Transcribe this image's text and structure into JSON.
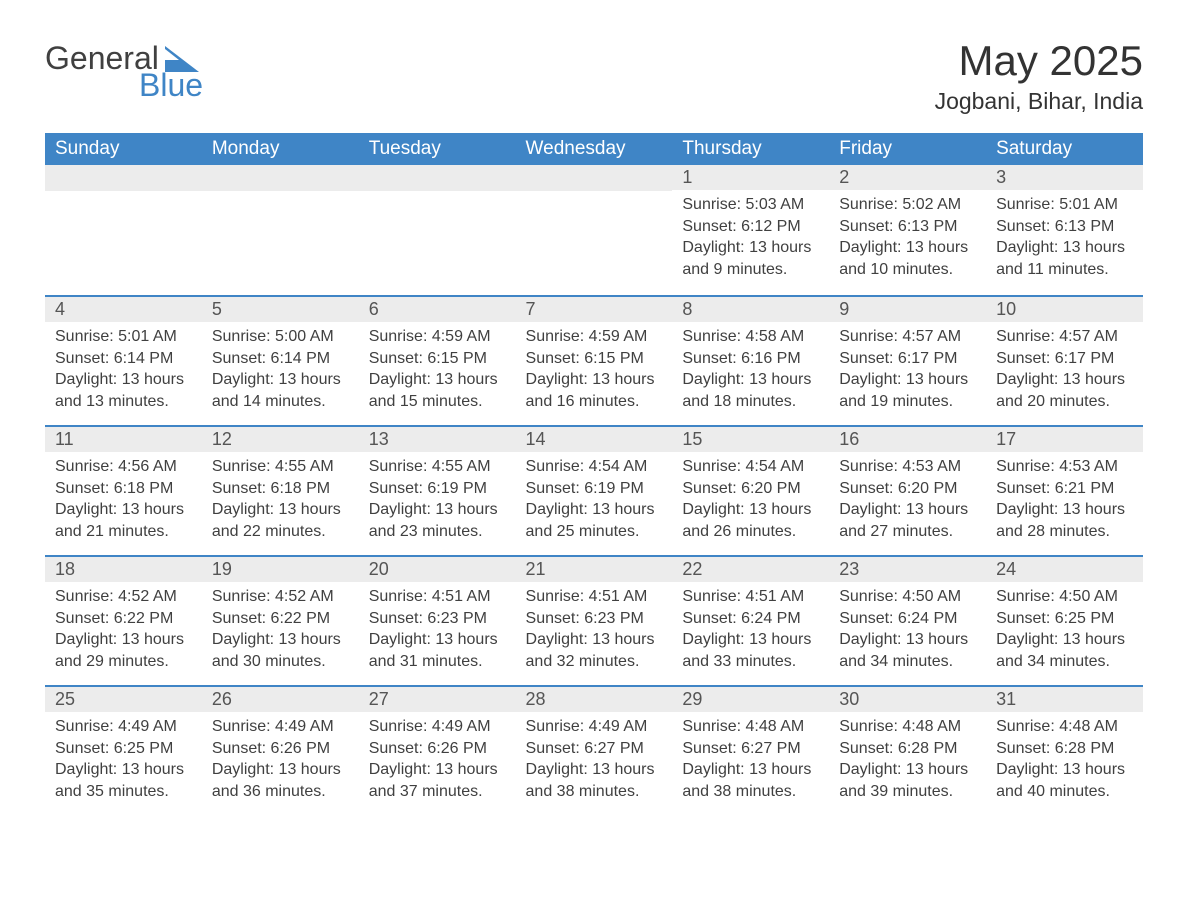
{
  "logo": {
    "text_general": "General",
    "text_blue": "Blue",
    "triangle_color": "#3f85c6"
  },
  "header": {
    "month_title": "May 2025",
    "location": "Jogbani, Bihar, India"
  },
  "styles": {
    "header_bg": "#3f85c6",
    "header_text": "#ffffff",
    "daybar_bg": "#ececec",
    "daybar_border": "#3f85c6",
    "body_text": "#404040",
    "page_bg": "#ffffff",
    "title_fontsize": 42,
    "location_fontsize": 23,
    "dayheader_fontsize": 19,
    "daynum_fontsize": 18,
    "cell_fontsize": 16
  },
  "day_headers": [
    "Sunday",
    "Monday",
    "Tuesday",
    "Wednesday",
    "Thursday",
    "Friday",
    "Saturday"
  ],
  "weeks": [
    [
      null,
      null,
      null,
      null,
      {
        "num": "1",
        "sunrise": "Sunrise: 5:03 AM",
        "sunset": "Sunset: 6:12 PM",
        "daylight": "Daylight: 13 hours and 9 minutes."
      },
      {
        "num": "2",
        "sunrise": "Sunrise: 5:02 AM",
        "sunset": "Sunset: 6:13 PM",
        "daylight": "Daylight: 13 hours and 10 minutes."
      },
      {
        "num": "3",
        "sunrise": "Sunrise: 5:01 AM",
        "sunset": "Sunset: 6:13 PM",
        "daylight": "Daylight: 13 hours and 11 minutes."
      }
    ],
    [
      {
        "num": "4",
        "sunrise": "Sunrise: 5:01 AM",
        "sunset": "Sunset: 6:14 PM",
        "daylight": "Daylight: 13 hours and 13 minutes."
      },
      {
        "num": "5",
        "sunrise": "Sunrise: 5:00 AM",
        "sunset": "Sunset: 6:14 PM",
        "daylight": "Daylight: 13 hours and 14 minutes."
      },
      {
        "num": "6",
        "sunrise": "Sunrise: 4:59 AM",
        "sunset": "Sunset: 6:15 PM",
        "daylight": "Daylight: 13 hours and 15 minutes."
      },
      {
        "num": "7",
        "sunrise": "Sunrise: 4:59 AM",
        "sunset": "Sunset: 6:15 PM",
        "daylight": "Daylight: 13 hours and 16 minutes."
      },
      {
        "num": "8",
        "sunrise": "Sunrise: 4:58 AM",
        "sunset": "Sunset: 6:16 PM",
        "daylight": "Daylight: 13 hours and 18 minutes."
      },
      {
        "num": "9",
        "sunrise": "Sunrise: 4:57 AM",
        "sunset": "Sunset: 6:17 PM",
        "daylight": "Daylight: 13 hours and 19 minutes."
      },
      {
        "num": "10",
        "sunrise": "Sunrise: 4:57 AM",
        "sunset": "Sunset: 6:17 PM",
        "daylight": "Daylight: 13 hours and 20 minutes."
      }
    ],
    [
      {
        "num": "11",
        "sunrise": "Sunrise: 4:56 AM",
        "sunset": "Sunset: 6:18 PM",
        "daylight": "Daylight: 13 hours and 21 minutes."
      },
      {
        "num": "12",
        "sunrise": "Sunrise: 4:55 AM",
        "sunset": "Sunset: 6:18 PM",
        "daylight": "Daylight: 13 hours and 22 minutes."
      },
      {
        "num": "13",
        "sunrise": "Sunrise: 4:55 AM",
        "sunset": "Sunset: 6:19 PM",
        "daylight": "Daylight: 13 hours and 23 minutes."
      },
      {
        "num": "14",
        "sunrise": "Sunrise: 4:54 AM",
        "sunset": "Sunset: 6:19 PM",
        "daylight": "Daylight: 13 hours and 25 minutes."
      },
      {
        "num": "15",
        "sunrise": "Sunrise: 4:54 AM",
        "sunset": "Sunset: 6:20 PM",
        "daylight": "Daylight: 13 hours and 26 minutes."
      },
      {
        "num": "16",
        "sunrise": "Sunrise: 4:53 AM",
        "sunset": "Sunset: 6:20 PM",
        "daylight": "Daylight: 13 hours and 27 minutes."
      },
      {
        "num": "17",
        "sunrise": "Sunrise: 4:53 AM",
        "sunset": "Sunset: 6:21 PM",
        "daylight": "Daylight: 13 hours and 28 minutes."
      }
    ],
    [
      {
        "num": "18",
        "sunrise": "Sunrise: 4:52 AM",
        "sunset": "Sunset: 6:22 PM",
        "daylight": "Daylight: 13 hours and 29 minutes."
      },
      {
        "num": "19",
        "sunrise": "Sunrise: 4:52 AM",
        "sunset": "Sunset: 6:22 PM",
        "daylight": "Daylight: 13 hours and 30 minutes."
      },
      {
        "num": "20",
        "sunrise": "Sunrise: 4:51 AM",
        "sunset": "Sunset: 6:23 PM",
        "daylight": "Daylight: 13 hours and 31 minutes."
      },
      {
        "num": "21",
        "sunrise": "Sunrise: 4:51 AM",
        "sunset": "Sunset: 6:23 PM",
        "daylight": "Daylight: 13 hours and 32 minutes."
      },
      {
        "num": "22",
        "sunrise": "Sunrise: 4:51 AM",
        "sunset": "Sunset: 6:24 PM",
        "daylight": "Daylight: 13 hours and 33 minutes."
      },
      {
        "num": "23",
        "sunrise": "Sunrise: 4:50 AM",
        "sunset": "Sunset: 6:24 PM",
        "daylight": "Daylight: 13 hours and 34 minutes."
      },
      {
        "num": "24",
        "sunrise": "Sunrise: 4:50 AM",
        "sunset": "Sunset: 6:25 PM",
        "daylight": "Daylight: 13 hours and 34 minutes."
      }
    ],
    [
      {
        "num": "25",
        "sunrise": "Sunrise: 4:49 AM",
        "sunset": "Sunset: 6:25 PM",
        "daylight": "Daylight: 13 hours and 35 minutes."
      },
      {
        "num": "26",
        "sunrise": "Sunrise: 4:49 AM",
        "sunset": "Sunset: 6:26 PM",
        "daylight": "Daylight: 13 hours and 36 minutes."
      },
      {
        "num": "27",
        "sunrise": "Sunrise: 4:49 AM",
        "sunset": "Sunset: 6:26 PM",
        "daylight": "Daylight: 13 hours and 37 minutes."
      },
      {
        "num": "28",
        "sunrise": "Sunrise: 4:49 AM",
        "sunset": "Sunset: 6:27 PM",
        "daylight": "Daylight: 13 hours and 38 minutes."
      },
      {
        "num": "29",
        "sunrise": "Sunrise: 4:48 AM",
        "sunset": "Sunset: 6:27 PM",
        "daylight": "Daylight: 13 hours and 38 minutes."
      },
      {
        "num": "30",
        "sunrise": "Sunrise: 4:48 AM",
        "sunset": "Sunset: 6:28 PM",
        "daylight": "Daylight: 13 hours and 39 minutes."
      },
      {
        "num": "31",
        "sunrise": "Sunrise: 4:48 AM",
        "sunset": "Sunset: 6:28 PM",
        "daylight": "Daylight: 13 hours and 40 minutes."
      }
    ]
  ]
}
